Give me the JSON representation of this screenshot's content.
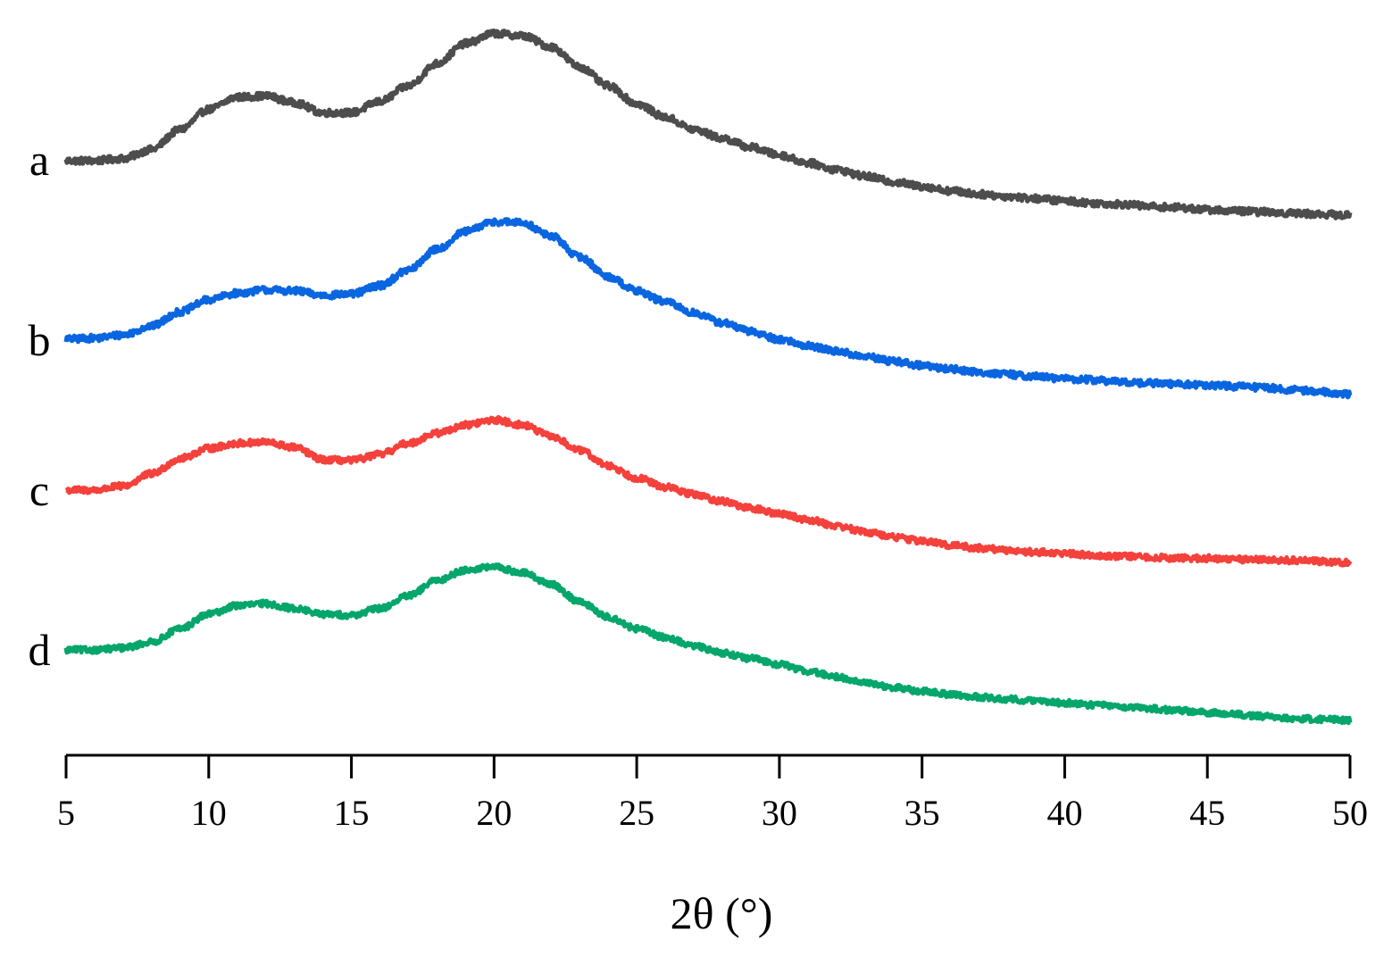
{
  "chart_data": {
    "type": "line",
    "title": "",
    "xlabel": "2θ (°)",
    "ylabel": "",
    "xlim": [
      5,
      50
    ],
    "x_ticks": [
      5,
      10,
      15,
      20,
      25,
      30,
      35,
      40,
      45,
      50
    ],
    "y_axis_visible": false,
    "grid": false,
    "legend": "none; series labelled at left end of each curve",
    "series": [
      {
        "name": "a",
        "color": "#4d4d4d",
        "points": [
          [
            5,
            0.0
          ],
          [
            6,
            0.0
          ],
          [
            7,
            0.02
          ],
          [
            8,
            0.1
          ],
          [
            9,
            0.28
          ],
          [
            10,
            0.46
          ],
          [
            11,
            0.57
          ],
          [
            12,
            0.58
          ],
          [
            13,
            0.52
          ],
          [
            14,
            0.43
          ],
          [
            15,
            0.43
          ],
          [
            16,
            0.53
          ],
          [
            17,
            0.67
          ],
          [
            18,
            0.87
          ],
          [
            19,
            1.05
          ],
          [
            20,
            1.14
          ],
          [
            21,
            1.12
          ],
          [
            22,
            1.02
          ],
          [
            23,
            0.84
          ],
          [
            24,
            0.67
          ],
          [
            25,
            0.51
          ],
          [
            26,
            0.39
          ],
          [
            27,
            0.28
          ],
          [
            28,
            0.2
          ],
          [
            29,
            0.12
          ],
          [
            30,
            0.05
          ],
          [
            31,
            -0.02
          ],
          [
            32,
            -0.08
          ],
          [
            33,
            -0.14
          ],
          [
            34,
            -0.19
          ],
          [
            35,
            -0.23
          ],
          [
            36,
            -0.27
          ],
          [
            37,
            -0.3
          ],
          [
            38,
            -0.32
          ],
          [
            39,
            -0.34
          ],
          [
            40,
            -0.36
          ],
          [
            41,
            -0.38
          ],
          [
            42,
            -0.39
          ],
          [
            43,
            -0.41
          ],
          [
            44,
            -0.42
          ],
          [
            45,
            -0.44
          ],
          [
            46,
            -0.45
          ],
          [
            47,
            -0.46
          ],
          [
            48,
            -0.47
          ],
          [
            49,
            -0.48
          ],
          [
            50,
            -0.49
          ]
        ]
      },
      {
        "name": "b",
        "color": "#0a66e0",
        "points": [
          [
            5,
            0.0
          ],
          [
            6,
            0.01
          ],
          [
            7,
            0.04
          ],
          [
            8,
            0.12
          ],
          [
            9,
            0.25
          ],
          [
            10,
            0.36
          ],
          [
            11,
            0.42
          ],
          [
            12,
            0.45
          ],
          [
            13,
            0.44
          ],
          [
            14,
            0.4
          ],
          [
            15,
            0.41
          ],
          [
            16,
            0.49
          ],
          [
            17,
            0.63
          ],
          [
            18,
            0.82
          ],
          [
            19,
            0.98
          ],
          [
            20,
            1.07
          ],
          [
            21,
            1.06
          ],
          [
            22,
            0.94
          ],
          [
            23,
            0.75
          ],
          [
            24,
            0.57
          ],
          [
            25,
            0.44
          ],
          [
            26,
            0.34
          ],
          [
            27,
            0.24
          ],
          [
            28,
            0.15
          ],
          [
            29,
            0.07
          ],
          [
            30,
            0.0
          ],
          [
            31,
            -0.06
          ],
          [
            32,
            -0.11
          ],
          [
            33,
            -0.16
          ],
          [
            34,
            -0.2
          ],
          [
            35,
            -0.24
          ],
          [
            36,
            -0.27
          ],
          [
            37,
            -0.3
          ],
          [
            38,
            -0.32
          ],
          [
            39,
            -0.34
          ],
          [
            40,
            -0.36
          ],
          [
            41,
            -0.37
          ],
          [
            42,
            -0.39
          ],
          [
            43,
            -0.4
          ],
          [
            44,
            -0.41
          ],
          [
            45,
            -0.42
          ],
          [
            46,
            -0.43
          ],
          [
            47,
            -0.44
          ],
          [
            48,
            -0.46
          ],
          [
            49,
            -0.48
          ],
          [
            50,
            -0.5
          ]
        ]
      },
      {
        "name": "c",
        "color": "#f5413c",
        "points": [
          [
            5,
            0.0
          ],
          [
            6,
            0.0
          ],
          [
            7,
            0.04
          ],
          [
            8,
            0.16
          ],
          [
            9,
            0.31
          ],
          [
            10,
            0.41
          ],
          [
            11,
            0.46
          ],
          [
            12,
            0.47
          ],
          [
            13,
            0.42
          ],
          [
            14,
            0.3
          ],
          [
            15,
            0.29
          ],
          [
            16,
            0.35
          ],
          [
            17,
            0.46
          ],
          [
            18,
            0.56
          ],
          [
            19,
            0.64
          ],
          [
            20,
            0.69
          ],
          [
            21,
            0.64
          ],
          [
            22,
            0.53
          ],
          [
            23,
            0.39
          ],
          [
            24,
            0.24
          ],
          [
            25,
            0.12
          ],
          [
            26,
            0.03
          ],
          [
            27,
            -0.04
          ],
          [
            28,
            -0.11
          ],
          [
            29,
            -0.18
          ],
          [
            30,
            -0.23
          ],
          [
            31,
            -0.29
          ],
          [
            32,
            -0.35
          ],
          [
            33,
            -0.41
          ],
          [
            34,
            -0.46
          ],
          [
            35,
            -0.5
          ],
          [
            36,
            -0.54
          ],
          [
            37,
            -0.57
          ],
          [
            38,
            -0.59
          ],
          [
            39,
            -0.61
          ],
          [
            40,
            -0.62
          ],
          [
            41,
            -0.64
          ],
          [
            42,
            -0.65
          ],
          [
            43,
            -0.66
          ],
          [
            44,
            -0.67
          ],
          [
            45,
            -0.67
          ],
          [
            46,
            -0.68
          ],
          [
            47,
            -0.68
          ],
          [
            48,
            -0.69
          ],
          [
            49,
            -0.7
          ],
          [
            50,
            -0.71
          ]
        ]
      },
      {
        "name": "d",
        "color": "#05a66b",
        "points": [
          [
            5,
            0.0
          ],
          [
            6,
            0.0
          ],
          [
            7,
            0.02
          ],
          [
            8,
            0.08
          ],
          [
            9,
            0.22
          ],
          [
            10,
            0.37
          ],
          [
            11,
            0.46
          ],
          [
            12,
            0.48
          ],
          [
            13,
            0.43
          ],
          [
            14,
            0.37
          ],
          [
            15,
            0.36
          ],
          [
            16,
            0.43
          ],
          [
            17,
            0.56
          ],
          [
            18,
            0.72
          ],
          [
            19,
            0.83
          ],
          [
            20,
            0.86
          ],
          [
            21,
            0.8
          ],
          [
            22,
            0.68
          ],
          [
            23,
            0.5
          ],
          [
            24,
            0.34
          ],
          [
            25,
            0.22
          ],
          [
            26,
            0.13
          ],
          [
            27,
            0.04
          ],
          [
            28,
            -0.03
          ],
          [
            29,
            -0.09
          ],
          [
            30,
            -0.15
          ],
          [
            31,
            -0.22
          ],
          [
            32,
            -0.28
          ],
          [
            33,
            -0.34
          ],
          [
            34,
            -0.39
          ],
          [
            35,
            -0.43
          ],
          [
            36,
            -0.46
          ],
          [
            37,
            -0.49
          ],
          [
            38,
            -0.51
          ],
          [
            39,
            -0.53
          ],
          [
            40,
            -0.55
          ],
          [
            41,
            -0.57
          ],
          [
            42,
            -0.59
          ],
          [
            43,
            -0.61
          ],
          [
            44,
            -0.63
          ],
          [
            45,
            -0.65
          ],
          [
            46,
            -0.67
          ],
          [
            47,
            -0.69
          ],
          [
            48,
            -0.71
          ],
          [
            49,
            -0.72
          ],
          [
            50,
            -0.73
          ]
        ]
      }
    ]
  }
}
